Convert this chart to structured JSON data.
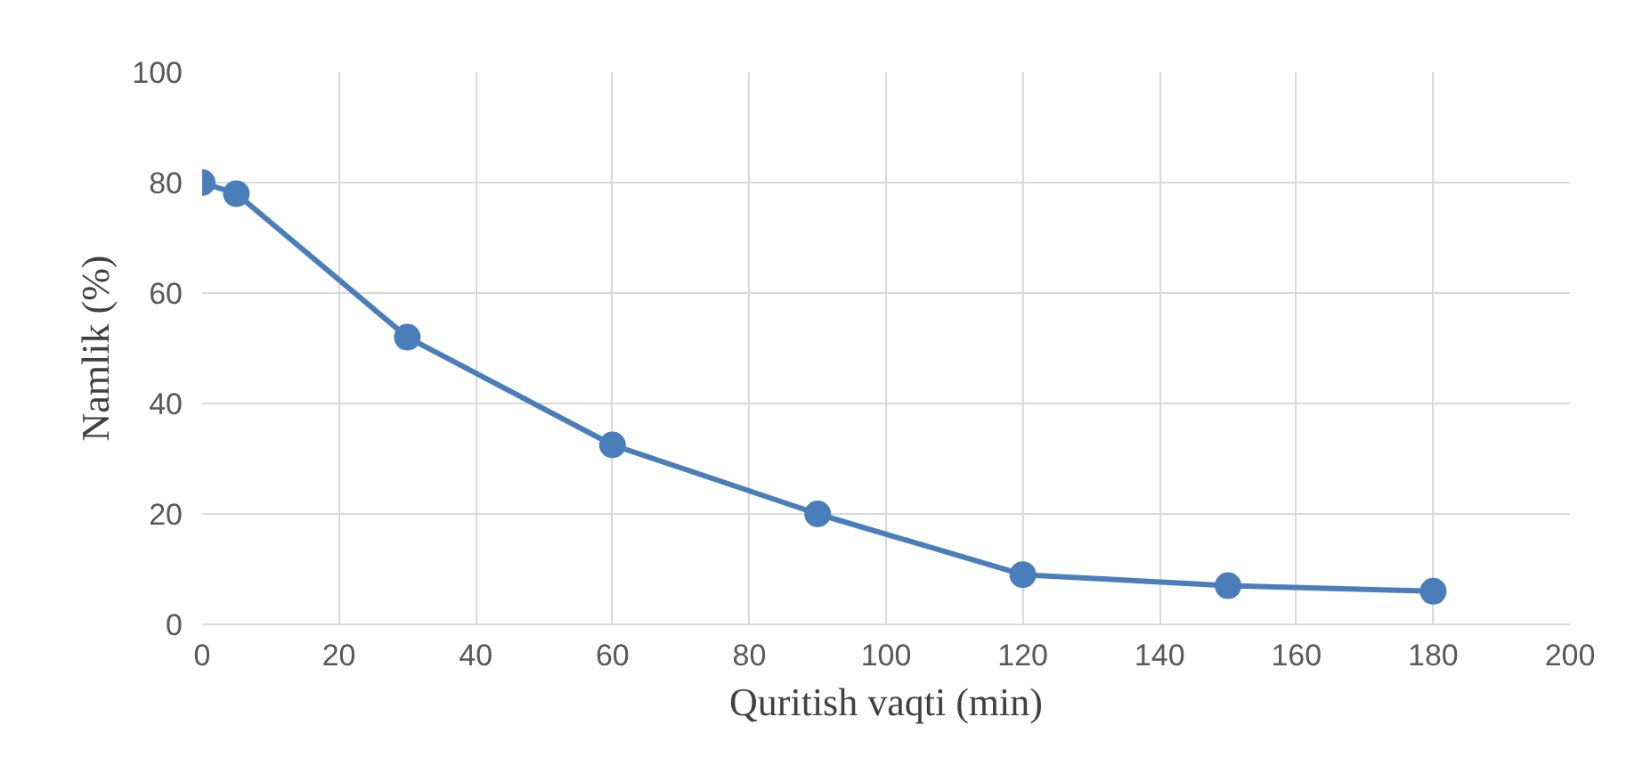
{
  "chart_data": {
    "type": "line",
    "xlabel": "Quritish vaqti (min)",
    "ylabel": "Namlik (%)",
    "x": [
      0,
      5,
      30,
      60,
      90,
      120,
      150,
      180
    ],
    "series": [
      {
        "color": "#4a7ebb",
        "values": [
          80,
          78,
          52,
          32.5,
          20,
          9,
          7,
          6
        ]
      }
    ],
    "xlim": [
      0,
      200
    ],
    "xticks": [
      0,
      20,
      40,
      60,
      80,
      100,
      120,
      140,
      160,
      180,
      200
    ],
    "ylim": [
      0,
      100
    ],
    "yticks": [
      0,
      20,
      40,
      60,
      80,
      100
    ],
    "grid": true,
    "marker": "circle",
    "line_style": "solid"
  }
}
